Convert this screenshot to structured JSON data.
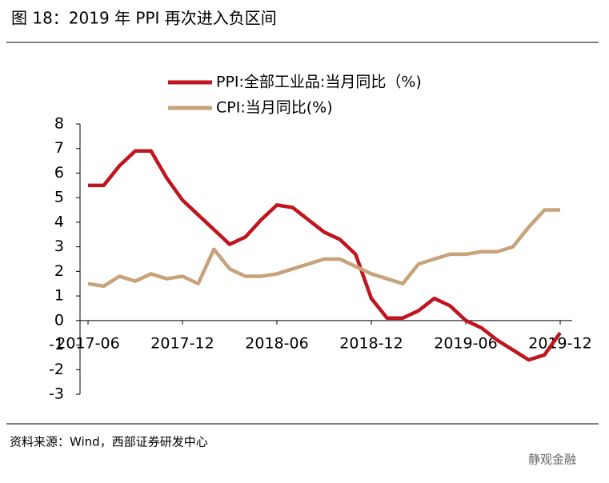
{
  "chart_data": {
    "type": "line",
    "title": "图 18：2019 年 PPI 再次进入负区间",
    "source": "资料来源：Wind，西部证券研发中心",
    "watermark": "静观金融",
    "categories": [
      "2017-06",
      null,
      null,
      null,
      null,
      null,
      "2017-12",
      null,
      null,
      null,
      null,
      null,
      "2018-06",
      null,
      null,
      null,
      null,
      null,
      "2018-12",
      null,
      null,
      null,
      null,
      null,
      "2019-06",
      null,
      null,
      null,
      null,
      null,
      "2019-12"
    ],
    "series": [
      {
        "name": "PPI:全部工业品:当月同比（%)",
        "color": "#c0141e",
        "values": [
          5.5,
          5.5,
          6.3,
          6.9,
          6.9,
          5.8,
          4.9,
          4.3,
          3.7,
          3.1,
          3.4,
          4.1,
          4.7,
          4.6,
          4.1,
          3.6,
          3.3,
          2.7,
          0.9,
          0.1,
          0.1,
          0.4,
          0.9,
          0.6,
          0,
          -0.3,
          -0.8,
          -1.2,
          -1.6,
          -1.4,
          -0.5
        ]
      },
      {
        "name": "CPI:当月同比(%)",
        "color": "#c8a27a",
        "values": [
          1.5,
          1.4,
          1.8,
          1.6,
          1.9,
          1.7,
          1.8,
          1.5,
          2.9,
          2.1,
          1.8,
          1.8,
          1.9,
          2.1,
          2.3,
          2.5,
          2.5,
          2.2,
          1.9,
          1.7,
          1.5,
          2.3,
          2.5,
          2.7,
          2.7,
          2.8,
          2.8,
          3.0,
          3.8,
          4.5,
          4.5
        ]
      }
    ],
    "ylim": [
      -3,
      8
    ],
    "yticks": [
      -3,
      -2,
      -1,
      0,
      1,
      2,
      3,
      4,
      5,
      6,
      7,
      8
    ]
  }
}
